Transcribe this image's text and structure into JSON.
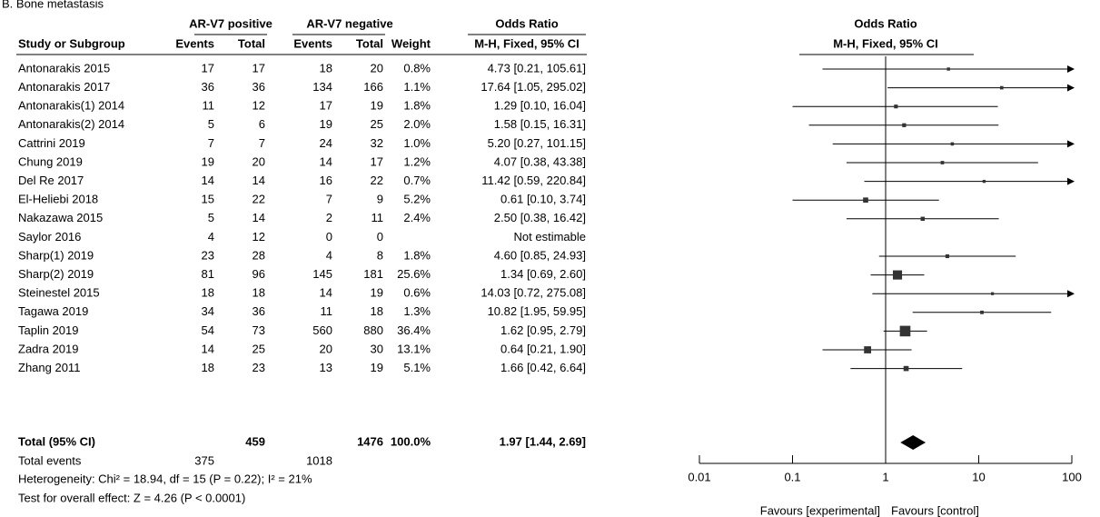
{
  "chart_data": {
    "type": "forest",
    "title": "B. Bone metastasis",
    "header": {
      "group_positive": "AR-V7 positive",
      "group_negative": "AR-V7 negative",
      "or_title": "Odds Ratio",
      "plot_title": "Odds Ratio",
      "study": "Study or Subgroup",
      "pos_events": "Events",
      "pos_total": "Total",
      "neg_events": "Events",
      "neg_total": "Total",
      "weight": "Weight",
      "or_method": "M-H, Fixed, 95% CI",
      "plot_method": "M-H, Fixed, 95% CI"
    },
    "studies": [
      {
        "name": "Antonarakis 2015",
        "pos_events": 17,
        "pos_total": 17,
        "neg_events": 18,
        "neg_total": 20,
        "weight": 0.8,
        "weight_label": "0.8%",
        "or_label": "4.73 [0.21, 105.61]",
        "or": 4.73,
        "lo": 0.21,
        "hi": 105.61
      },
      {
        "name": "Antonarakis 2017",
        "pos_events": 36,
        "pos_total": 36,
        "neg_events": 134,
        "neg_total": 166,
        "weight": 1.1,
        "weight_label": "1.1%",
        "or_label": "17.64 [1.05, 295.02]",
        "or": 17.64,
        "lo": 1.05,
        "hi": 295.02
      },
      {
        "name": "Antonarakis(1) 2014",
        "pos_events": 11,
        "pos_total": 12,
        "neg_events": 17,
        "neg_total": 19,
        "weight": 1.8,
        "weight_label": "1.8%",
        "or_label": "1.29 [0.10, 16.04]",
        "or": 1.29,
        "lo": 0.1,
        "hi": 16.04
      },
      {
        "name": "Antonarakis(2) 2014",
        "pos_events": 5,
        "pos_total": 6,
        "neg_events": 19,
        "neg_total": 25,
        "weight": 2.0,
        "weight_label": "2.0%",
        "or_label": "1.58 [0.15, 16.31]",
        "or": 1.58,
        "lo": 0.15,
        "hi": 16.31
      },
      {
        "name": "Cattrini 2019",
        "pos_events": 7,
        "pos_total": 7,
        "neg_events": 24,
        "neg_total": 32,
        "weight": 1.0,
        "weight_label": "1.0%",
        "or_label": "5.20 [0.27, 101.15]",
        "or": 5.2,
        "lo": 0.27,
        "hi": 101.15
      },
      {
        "name": "Chung 2019",
        "pos_events": 19,
        "pos_total": 20,
        "neg_events": 14,
        "neg_total": 17,
        "weight": 1.2,
        "weight_label": "1.2%",
        "or_label": "4.07 [0.38, 43.38]",
        "or": 4.07,
        "lo": 0.38,
        "hi": 43.38
      },
      {
        "name": "Del Re 2017",
        "pos_events": 14,
        "pos_total": 14,
        "neg_events": 16,
        "neg_total": 22,
        "weight": 0.7,
        "weight_label": "0.7%",
        "or_label": "11.42 [0.59, 220.84]",
        "or": 11.42,
        "lo": 0.59,
        "hi": 220.84
      },
      {
        "name": "El-Heliebi 2018",
        "pos_events": 15,
        "pos_total": 22,
        "neg_events": 7,
        "neg_total": 9,
        "weight": 5.2,
        "weight_label": "5.2%",
        "or_label": "0.61 [0.10, 3.74]",
        "or": 0.61,
        "lo": 0.1,
        "hi": 3.74
      },
      {
        "name": "Nakazawa 2015",
        "pos_events": 5,
        "pos_total": 14,
        "neg_events": 2,
        "neg_total": 11,
        "weight": 2.4,
        "weight_label": "2.4%",
        "or_label": "2.50 [0.38, 16.42]",
        "or": 2.5,
        "lo": 0.38,
        "hi": 16.42
      },
      {
        "name": "Saylor 2016",
        "pos_events": 4,
        "pos_total": 12,
        "neg_events": 0,
        "neg_total": 0,
        "or_label": "Not estimable"
      },
      {
        "name": "Sharp(1) 2019",
        "pos_events": 23,
        "pos_total": 28,
        "neg_events": 4,
        "neg_total": 8,
        "weight": 1.8,
        "weight_label": "1.8%",
        "or_label": "4.60 [0.85, 24.93]",
        "or": 4.6,
        "lo": 0.85,
        "hi": 24.93
      },
      {
        "name": "Sharp(2) 2019",
        "pos_events": 81,
        "pos_total": 96,
        "neg_events": 145,
        "neg_total": 181,
        "weight": 25.6,
        "weight_label": "25.6%",
        "or_label": "1.34 [0.69, 2.60]",
        "or": 1.34,
        "lo": 0.69,
        "hi": 2.6
      },
      {
        "name": "Steinestel 2015",
        "pos_events": 18,
        "pos_total": 18,
        "neg_events": 14,
        "neg_total": 19,
        "weight": 0.6,
        "weight_label": "0.6%",
        "or_label": "14.03 [0.72, 275.08]",
        "or": 14.03,
        "lo": 0.72,
        "hi": 275.08
      },
      {
        "name": "Tagawa 2019",
        "pos_events": 34,
        "pos_total": 36,
        "neg_events": 11,
        "neg_total": 18,
        "weight": 1.3,
        "weight_label": "1.3%",
        "or_label": "10.82 [1.95, 59.95]",
        "or": 10.82,
        "lo": 1.95,
        "hi": 59.95
      },
      {
        "name": "Taplin 2019",
        "pos_events": 54,
        "pos_total": 73,
        "neg_events": 560,
        "neg_total": 880,
        "weight": 36.4,
        "weight_label": "36.4%",
        "or_label": "1.62 [0.95, 2.79]",
        "or": 1.62,
        "lo": 0.95,
        "hi": 2.79
      },
      {
        "name": "Zadra 2019",
        "pos_events": 14,
        "pos_total": 25,
        "neg_events": 20,
        "neg_total": 30,
        "weight": 13.1,
        "weight_label": "13.1%",
        "or_label": "0.64 [0.21, 1.90]",
        "or": 0.64,
        "lo": 0.21,
        "hi": 1.9
      },
      {
        "name": "Zhang  2011",
        "pos_events": 18,
        "pos_total": 23,
        "neg_events": 13,
        "neg_total": 19,
        "weight": 5.1,
        "weight_label": "5.1%",
        "or_label": "1.66 [0.42, 6.64]",
        "or": 1.66,
        "lo": 0.42,
        "hi": 6.64
      }
    ],
    "total": {
      "name": "Total (95% CI)",
      "pos_total": 459,
      "neg_total": 1476,
      "weight_label": "100.0%",
      "or_label": "1.97 [1.44, 2.69]",
      "or": 1.97,
      "lo": 1.44,
      "hi": 2.69
    },
    "total_events": {
      "name": "Total events",
      "pos_events": 375,
      "neg_events": 1018
    },
    "heterogeneity": "Heterogeneity: Chi² = 18.94, df = 15 (P = 0.22); I² = 21%",
    "overall_effect": "Test for overall effect: Z = 4.26 (P < 0.0001)",
    "log_scale": true,
    "xlim": [
      0.01,
      100
    ],
    "xticks": [
      0.01,
      0.1,
      1,
      10,
      100
    ],
    "favours_left": "Favours [experimental]",
    "favours_right": "Favours [control]"
  }
}
